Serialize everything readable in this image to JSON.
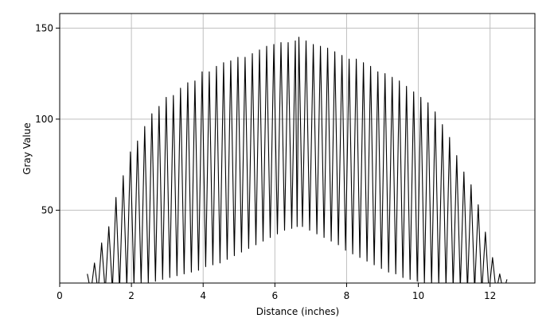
{
  "chart_data": {
    "type": "line",
    "title": "",
    "xlabel": "Distance (inches)",
    "ylabel": "Gray Value",
    "xlim": [
      0,
      13.25
    ],
    "ylim": [
      10,
      158
    ],
    "x_ticks": [
      0,
      2,
      4,
      6,
      8,
      10,
      12
    ],
    "y_ticks": [
      50,
      100,
      150
    ],
    "grid": true,
    "colors": {
      "line": "#000000",
      "grid": "#bfbfbf",
      "frame": "#000000",
      "background": "#ffffff"
    },
    "series": [
      {
        "peaks": [
          [
            0.77,
            15
          ],
          [
            0.97,
            21
          ],
          [
            1.17,
            32
          ],
          [
            1.37,
            41
          ],
          [
            1.57,
            57
          ],
          [
            1.77,
            69
          ],
          [
            1.97,
            82
          ],
          [
            2.17,
            88
          ],
          [
            2.37,
            96
          ],
          [
            2.57,
            103
          ],
          [
            2.77,
            107
          ],
          [
            2.97,
            112
          ],
          [
            3.17,
            113
          ],
          [
            3.37,
            117
          ],
          [
            3.57,
            120
          ],
          [
            3.77,
            121
          ],
          [
            3.97,
            126
          ],
          [
            4.17,
            126
          ],
          [
            4.37,
            129
          ],
          [
            4.57,
            131
          ],
          [
            4.77,
            132
          ],
          [
            4.97,
            134
          ],
          [
            5.17,
            134
          ],
          [
            5.37,
            136
          ],
          [
            5.57,
            138
          ],
          [
            5.77,
            140
          ],
          [
            5.97,
            141
          ],
          [
            6.17,
            142
          ],
          [
            6.37,
            142
          ],
          [
            6.57,
            143
          ],
          [
            6.67,
            145
          ],
          [
            6.87,
            143
          ],
          [
            7.07,
            141
          ],
          [
            7.27,
            140
          ],
          [
            7.47,
            139
          ],
          [
            7.67,
            137
          ],
          [
            7.87,
            135
          ],
          [
            8.07,
            133
          ],
          [
            8.27,
            133
          ],
          [
            8.47,
            131
          ],
          [
            8.67,
            129
          ],
          [
            8.87,
            126
          ],
          [
            9.07,
            125
          ],
          [
            9.27,
            123
          ],
          [
            9.47,
            121
          ],
          [
            9.67,
            118
          ],
          [
            9.87,
            115
          ],
          [
            10.07,
            112
          ],
          [
            10.27,
            109
          ],
          [
            10.47,
            104
          ],
          [
            10.67,
            97
          ],
          [
            10.87,
            90
          ],
          [
            11.07,
            80
          ],
          [
            11.27,
            71
          ],
          [
            11.47,
            64
          ],
          [
            11.67,
            53
          ],
          [
            11.87,
            38
          ],
          [
            12.07,
            24
          ],
          [
            12.27,
            15
          ],
          [
            12.47,
            12
          ]
        ],
        "troughs": [
          [
            0.87,
            5
          ],
          [
            1.07,
            5
          ],
          [
            1.27,
            5
          ],
          [
            1.47,
            6
          ],
          [
            1.67,
            6
          ],
          [
            1.87,
            8
          ],
          [
            2.07,
            9
          ],
          [
            2.27,
            10
          ],
          [
            2.47,
            10
          ],
          [
            2.67,
            11
          ],
          [
            2.87,
            12
          ],
          [
            3.07,
            13
          ],
          [
            3.27,
            14
          ],
          [
            3.47,
            15
          ],
          [
            3.67,
            16
          ],
          [
            3.87,
            17
          ],
          [
            4.07,
            19
          ],
          [
            4.27,
            20
          ],
          [
            4.47,
            21
          ],
          [
            4.67,
            23
          ],
          [
            4.87,
            25
          ],
          [
            5.07,
            27
          ],
          [
            5.27,
            29
          ],
          [
            5.47,
            31
          ],
          [
            5.67,
            33
          ],
          [
            5.87,
            35
          ],
          [
            6.07,
            37
          ],
          [
            6.27,
            39
          ],
          [
            6.47,
            40
          ],
          [
            6.62,
            41
          ],
          [
            6.77,
            41
          ],
          [
            6.97,
            39
          ],
          [
            7.17,
            37
          ],
          [
            7.37,
            35
          ],
          [
            7.57,
            33
          ],
          [
            7.77,
            31
          ],
          [
            7.97,
            28
          ],
          [
            8.17,
            26
          ],
          [
            8.37,
            24
          ],
          [
            8.57,
            22
          ],
          [
            8.77,
            20
          ],
          [
            8.97,
            18
          ],
          [
            9.17,
            16
          ],
          [
            9.37,
            15
          ],
          [
            9.57,
            13
          ],
          [
            9.77,
            12
          ],
          [
            9.97,
            11
          ],
          [
            10.17,
            10
          ],
          [
            10.37,
            9
          ],
          [
            10.57,
            9
          ],
          [
            10.77,
            8
          ],
          [
            10.97,
            7
          ],
          [
            11.17,
            7
          ],
          [
            11.37,
            6
          ],
          [
            11.57,
            6
          ],
          [
            11.77,
            5
          ],
          [
            11.97,
            5
          ],
          [
            12.17,
            5
          ],
          [
            12.37,
            5
          ]
        ]
      }
    ]
  }
}
